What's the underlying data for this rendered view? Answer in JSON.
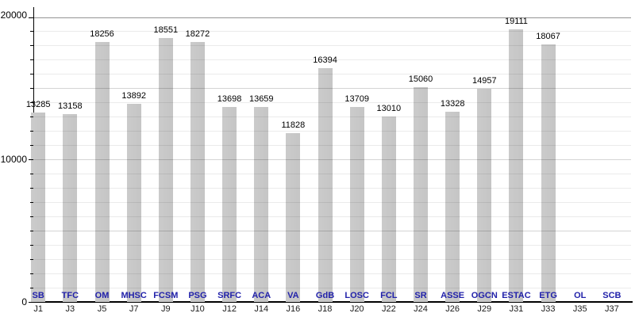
{
  "chart_data": {
    "type": "bar",
    "title": "",
    "xlabel": "",
    "ylabel": "",
    "ylim": [
      0,
      20000
    ],
    "ytick_values": [
      0,
      10000,
      20000
    ],
    "ytick_labels": [
      "0",
      "10000",
      "20000"
    ],
    "minor_grid_step": 1000,
    "grid": true,
    "legend": false,
    "bar_color": "#cbcbcb",
    "team_label_color": "#2222aa",
    "categories": [
      "J1",
      "J3",
      "J5",
      "J7",
      "J9",
      "J10",
      "J12",
      "J14",
      "J16",
      "J18",
      "J20",
      "J22",
      "J24",
      "J26",
      "J29",
      "J31",
      "J33",
      "J35",
      "J37"
    ],
    "teams": [
      "SB",
      "TFC",
      "OM",
      "MHSC",
      "FCSM",
      "PSG",
      "SRFC",
      "ACA",
      "VA",
      "GdB",
      "LOSC",
      "FCL",
      "SR",
      "ASSE",
      "OGCN",
      "ESTAC",
      "ETG",
      "OL",
      "SCB"
    ],
    "series": [
      {
        "name": "attendance",
        "values": [
          13285,
          13158,
          18256,
          13892,
          18551,
          18272,
          13698,
          13659,
          11828,
          16394,
          13709,
          13010,
          15060,
          13328,
          14957,
          19111,
          18067,
          null,
          null
        ]
      }
    ]
  }
}
